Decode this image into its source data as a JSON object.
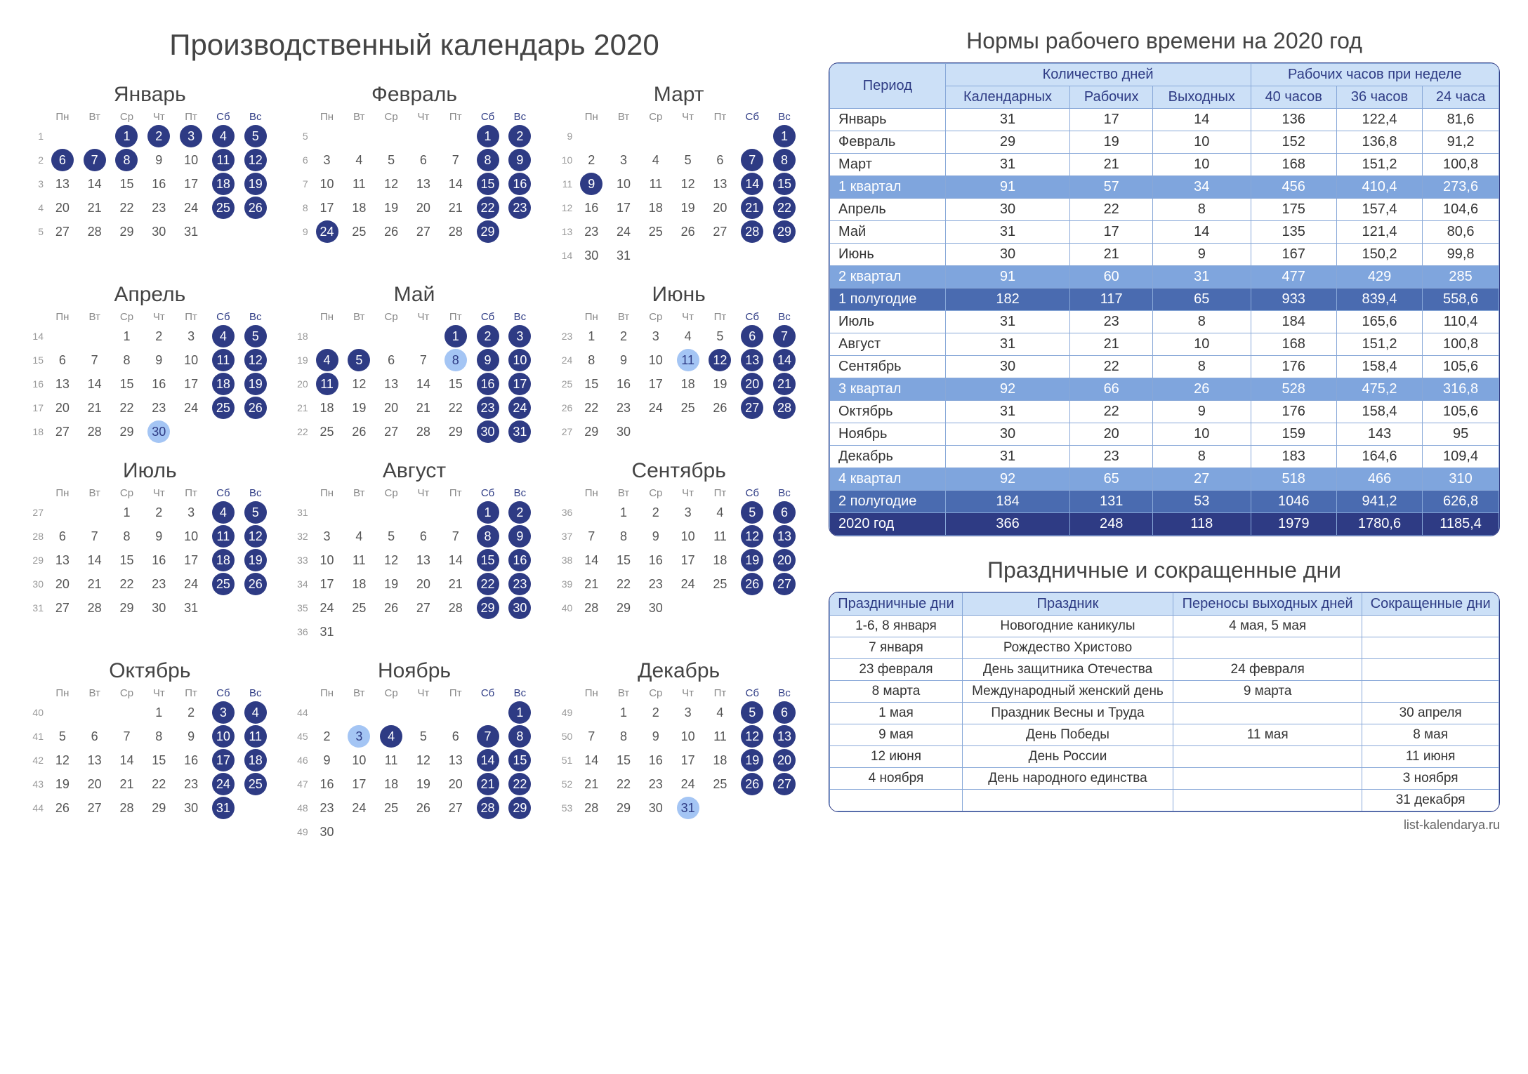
{
  "title": "Производственный календарь 2020",
  "weekdays": [
    "Пн",
    "Вт",
    "Ср",
    "Чт",
    "Пт",
    "Сб",
    "Вс"
  ],
  "months": [
    {
      "name": "Январь",
      "firstWk": 1,
      "start": 3,
      "days": 31,
      "hol": [
        1,
        2,
        3,
        4,
        5,
        6,
        7,
        8,
        11,
        12,
        18,
        19,
        25,
        26
      ]
    },
    {
      "name": "Февраль",
      "firstWk": 5,
      "start": 6,
      "days": 29,
      "hol": [
        1,
        2,
        8,
        9,
        15,
        16,
        22,
        23,
        24,
        29
      ]
    },
    {
      "name": "Март",
      "firstWk": 9,
      "start": 7,
      "days": 31,
      "hol": [
        1,
        7,
        8,
        9,
        14,
        15,
        21,
        22,
        28,
        29
      ]
    },
    {
      "name": "Апрель",
      "firstWk": 14,
      "start": 3,
      "days": 30,
      "hol": [
        4,
        5,
        11,
        12,
        18,
        19,
        25,
        26
      ],
      "pre": [
        30
      ]
    },
    {
      "name": "Май",
      "firstWk": 18,
      "start": 5,
      "days": 31,
      "hol": [
        1,
        2,
        3,
        4,
        5,
        9,
        10,
        11,
        16,
        17,
        23,
        24,
        30,
        31
      ],
      "pre": [
        8
      ]
    },
    {
      "name": "Июнь",
      "firstWk": 23,
      "start": 1,
      "days": 30,
      "hol": [
        6,
        7,
        12,
        13,
        14,
        20,
        21,
        27,
        28
      ],
      "pre": [
        11
      ]
    },
    {
      "name": "Июль",
      "firstWk": 27,
      "start": 3,
      "days": 31,
      "hol": [
        4,
        5,
        11,
        12,
        18,
        19,
        25,
        26
      ]
    },
    {
      "name": "Август",
      "firstWk": 31,
      "start": 6,
      "days": 31,
      "hol": [
        1,
        2,
        8,
        9,
        15,
        16,
        22,
        23,
        29,
        30
      ]
    },
    {
      "name": "Сентябрь",
      "firstWk": 36,
      "start": 2,
      "days": 30,
      "hol": [
        5,
        6,
        12,
        13,
        19,
        20,
        26,
        27
      ]
    },
    {
      "name": "Октябрь",
      "firstWk": 40,
      "start": 4,
      "days": 31,
      "hol": [
        3,
        4,
        10,
        11,
        17,
        18,
        24,
        25,
        31
      ]
    },
    {
      "name": "Ноябрь",
      "firstWk": 44,
      "start": 7,
      "days": 30,
      "hol": [
        1,
        4,
        7,
        8,
        14,
        15,
        21,
        22,
        28,
        29
      ],
      "pre": [
        3
      ]
    },
    {
      "name": "Декабрь",
      "firstWk": 49,
      "start": 2,
      "days": 31,
      "hol": [
        5,
        6,
        12,
        13,
        19,
        20,
        26,
        27
      ],
      "pre": [
        31
      ]
    }
  ],
  "norms": {
    "title": "Нормы рабочего времени на 2020 год",
    "head1": [
      "Период",
      "Количество дней",
      "Рабочих часов при неделе"
    ],
    "head2": [
      "Календарных",
      "Рабочих",
      "Выходных",
      "40 часов",
      "36 часов",
      "24 часа"
    ],
    "rows": [
      {
        "c": [
          "Январь",
          "31",
          "17",
          "14",
          "136",
          "122,4",
          "81,6"
        ]
      },
      {
        "c": [
          "Февраль",
          "29",
          "19",
          "10",
          "152",
          "136,8",
          "91,2"
        ]
      },
      {
        "c": [
          "Март",
          "31",
          "21",
          "10",
          "168",
          "151,2",
          "100,8"
        ]
      },
      {
        "c": [
          "1 квартал",
          "91",
          "57",
          "34",
          "456",
          "410,4",
          "273,6"
        ],
        "cls": "q"
      },
      {
        "c": [
          "Апрель",
          "30",
          "22",
          "8",
          "175",
          "157,4",
          "104,6"
        ]
      },
      {
        "c": [
          "Май",
          "31",
          "17",
          "14",
          "135",
          "121,4",
          "80,6"
        ]
      },
      {
        "c": [
          "Июнь",
          "30",
          "21",
          "9",
          "167",
          "150,2",
          "99,8"
        ]
      },
      {
        "c": [
          "2 квартал",
          "91",
          "60",
          "31",
          "477",
          "429",
          "285"
        ],
        "cls": "q"
      },
      {
        "c": [
          "1 полугодие",
          "182",
          "117",
          "65",
          "933",
          "839,4",
          "558,6"
        ],
        "cls": "h"
      },
      {
        "c": [
          "Июль",
          "31",
          "23",
          "8",
          "184",
          "165,6",
          "110,4"
        ]
      },
      {
        "c": [
          "Август",
          "31",
          "21",
          "10",
          "168",
          "151,2",
          "100,8"
        ]
      },
      {
        "c": [
          "Сентябрь",
          "30",
          "22",
          "8",
          "176",
          "158,4",
          "105,6"
        ]
      },
      {
        "c": [
          "3 квартал",
          "92",
          "66",
          "26",
          "528",
          "475,2",
          "316,8"
        ],
        "cls": "q"
      },
      {
        "c": [
          "Октябрь",
          "31",
          "22",
          "9",
          "176",
          "158,4",
          "105,6"
        ]
      },
      {
        "c": [
          "Ноябрь",
          "30",
          "20",
          "10",
          "159",
          "143",
          "95"
        ]
      },
      {
        "c": [
          "Декабрь",
          "31",
          "23",
          "8",
          "183",
          "164,6",
          "109,4"
        ]
      },
      {
        "c": [
          "4 квартал",
          "92",
          "65",
          "27",
          "518",
          "466",
          "310"
        ],
        "cls": "q"
      },
      {
        "c": [
          "2 полугодие",
          "184",
          "131",
          "53",
          "1046",
          "941,2",
          "626,8"
        ],
        "cls": "h"
      },
      {
        "c": [
          "2020 год",
          "366",
          "248",
          "118",
          "1979",
          "1780,6",
          "1185,4"
        ],
        "cls": "y"
      }
    ]
  },
  "holidays": {
    "title": "Праздничные и сокращенные дни",
    "head": [
      "Праздничные дни",
      "Праздник",
      "Переносы выходных дней",
      "Сокращенные дни"
    ],
    "rows": [
      [
        "1-6, 8 января",
        "Новогодние каникулы",
        "4 мая, 5 мая",
        ""
      ],
      [
        "7 января",
        "Рождество Христово",
        "",
        ""
      ],
      [
        "23 февраля",
        "День защитника Отечества",
        "24 февраля",
        ""
      ],
      [
        "8 марта",
        "Международный женский день",
        "9 марта",
        ""
      ],
      [
        "1 мая",
        "Праздник Весны и Труда",
        "",
        "30 апреля"
      ],
      [
        "9 мая",
        "День Победы",
        "11 мая",
        "8 мая"
      ],
      [
        "12 июня",
        "День России",
        "",
        "11 июня"
      ],
      [
        "4 ноября",
        "День народного единства",
        "",
        "3 ноября"
      ],
      [
        "",
        "",
        "",
        "31 декабря"
      ]
    ]
  },
  "footer": "list-kalendarya.ru"
}
